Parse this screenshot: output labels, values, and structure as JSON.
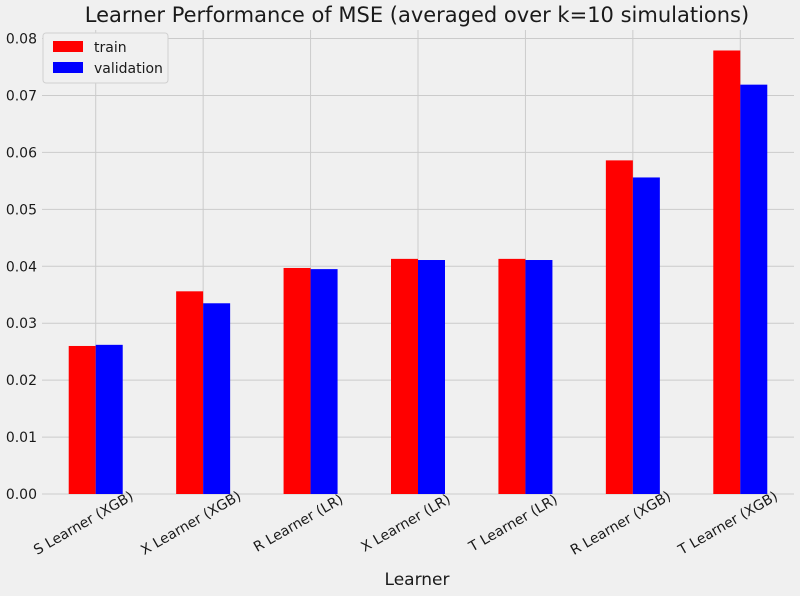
{
  "chart_data": {
    "type": "bar",
    "title": "Learner Performance of MSE (averaged over k=10 simulations)",
    "xlabel": "Learner",
    "ylabel": "",
    "categories": [
      "S Learner (XGB)",
      "X Learner (XGB)",
      "R Learner (LR)",
      "X Learner (LR)",
      "T Learner (LR)",
      "R Learner (XGB)",
      "T Learner (XGB)"
    ],
    "series": [
      {
        "name": "train",
        "color": "#ff0000",
        "values": [
          0.026,
          0.0356,
          0.0397,
          0.0413,
          0.0413,
          0.0586,
          0.0779
        ]
      },
      {
        "name": "validation",
        "color": "#0000ff",
        "values": [
          0.0262,
          0.0335,
          0.0395,
          0.0411,
          0.0411,
          0.0556,
          0.0719
        ]
      }
    ],
    "ylim": [
      0,
      0.0815
    ],
    "yticks": [
      "0.00",
      "0.01",
      "0.02",
      "0.03",
      "0.04",
      "0.05",
      "0.06",
      "0.07",
      "0.08"
    ],
    "grid": true,
    "legend_position": "top-left"
  }
}
